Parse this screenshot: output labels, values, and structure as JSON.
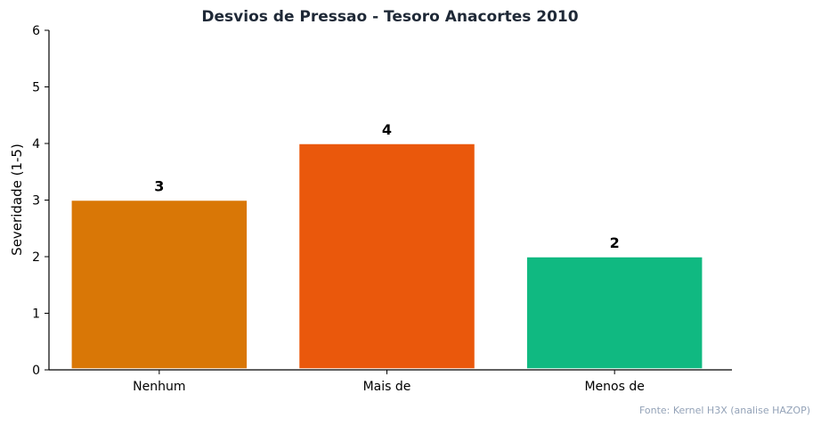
{
  "chart_data": {
    "type": "bar",
    "title": "Desvios de Pressao - Tesoro Anacortes 2010",
    "xlabel": "",
    "ylabel": "Severidade (1-5)",
    "categories": [
      "Nenhum",
      "Mais de",
      "Menos de"
    ],
    "values": [
      3,
      4,
      2
    ],
    "colors": [
      "#d97706",
      "#ea580c",
      "#10b981"
    ],
    "ylim": [
      0,
      6
    ],
    "yticks": [
      0,
      1,
      2,
      3,
      4,
      5,
      6
    ],
    "data_labels": [
      "3",
      "4",
      "2"
    ],
    "grid": false,
    "legend": "none"
  },
  "source_note": "Fonte: Kernel H3X (analise HAZOP)"
}
